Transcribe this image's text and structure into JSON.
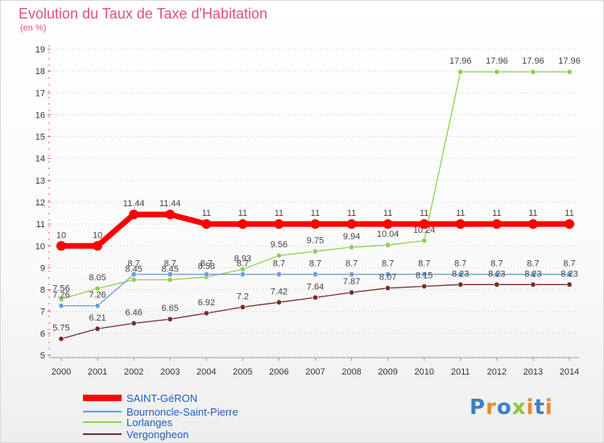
{
  "chart_data": {
    "type": "line",
    "title": "Evolution du Taux de Taxe d'Habitation",
    "subtitle": "(en %)",
    "xlabel": "",
    "ylabel": "",
    "categories": [
      "2000",
      "2001",
      "2002",
      "2003",
      "2004",
      "2005",
      "2006",
      "2007",
      "2008",
      "2009",
      "2010",
      "2011",
      "2012",
      "2013",
      "2014"
    ],
    "ylim": [
      5,
      19
    ],
    "yticks": [
      5,
      6,
      7,
      8,
      9,
      10,
      11,
      12,
      13,
      14,
      15,
      16,
      17,
      18,
      19
    ],
    "grid": "horizontal dotted",
    "legend_position": "bottom-left",
    "series": [
      {
        "name": "SAINT-GéRON",
        "color": "#ff0000",
        "values": [
          10,
          10,
          11.44,
          11.44,
          11,
          11,
          11,
          11,
          11,
          11,
          11,
          11,
          11,
          11,
          11
        ],
        "labels": [
          "10",
          "10",
          "11.44",
          "11.44",
          "11",
          "11",
          "11",
          "11",
          "11",
          "11",
          "11",
          "11",
          "11",
          "11",
          "11"
        ]
      },
      {
        "name": "Bournoncle-Saint-Pierre",
        "color": "#6a9fd4",
        "values": [
          7.26,
          7.26,
          8.7,
          8.7,
          8.7,
          8.7,
          8.7,
          8.7,
          8.7,
          8.7,
          8.7,
          8.7,
          8.7,
          8.7,
          8.7
        ],
        "labels": [
          "7.26",
          "7.26",
          "8.7",
          "8.7",
          "8.7",
          "8.7",
          "8.7",
          "8.7",
          "8.7",
          "8.7",
          "8.7",
          "8.7",
          "8.7",
          "8.7",
          "8.7"
        ]
      },
      {
        "name": "Lorlanges",
        "color": "#8fd14f",
        "values": [
          7.56,
          8.05,
          8.45,
          8.45,
          8.58,
          8.93,
          9.56,
          9.75,
          9.94,
          10.04,
          10.24,
          17.96,
          17.96,
          17.96,
          17.96
        ],
        "labels": [
          "7.56",
          "8.05",
          "8.45",
          "8.45",
          "8.58",
          "8.93",
          "9.56",
          "9.75",
          "9.94",
          "10.04",
          "10.24",
          "17.96",
          "17.96",
          "17.96",
          "17.96"
        ]
      },
      {
        "name": "Vergongheon",
        "color": "#7a2a2a",
        "values": [
          5.75,
          6.21,
          6.46,
          6.65,
          6.92,
          7.2,
          7.42,
          7.64,
          7.87,
          8.07,
          8.15,
          8.23,
          8.23,
          8.23,
          8.23
        ],
        "labels": [
          "5.75",
          "6.21",
          "6.46",
          "6.65",
          "6.92",
          "7.2",
          "7.42",
          "7.64",
          "7.87",
          "8.07",
          "8.15",
          "8.23",
          "8.23",
          "8.23",
          "8.23"
        ]
      }
    ]
  },
  "branding": {
    "logo_letters": [
      "P",
      "r",
      "o",
      "x",
      "i",
      "t",
      "i"
    ]
  }
}
